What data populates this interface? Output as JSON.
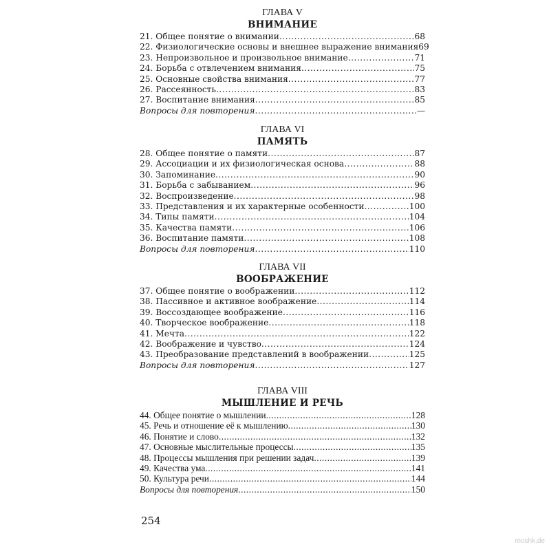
{
  "chapters": [
    {
      "label": "ГЛАВА V",
      "title": "ВНИМАНИЕ",
      "entries": [
        {
          "text": "21. Общее понятие о внимании",
          "page": "68"
        },
        {
          "text": "22. Физиологические основы и внешнее выражение внимания",
          "page": "69"
        },
        {
          "text": "23. Непроизвольное и произвольное внимание",
          "page": "71"
        },
        {
          "text": "24. Борьба с отвлечением внимания",
          "page": "75"
        },
        {
          "text": "25. Основные свойства внимания",
          "page": "77"
        },
        {
          "text": "26. Рассеянность",
          "page": "83"
        },
        {
          "text": "27. Воспитание внимания",
          "page": "85"
        },
        {
          "text": "Вопросы для повторения",
          "page": "—",
          "italic": true
        }
      ]
    },
    {
      "label": "ГЛАВА VI",
      "title": "ПАМЯТЬ",
      "entries": [
        {
          "text": "28. Общее понятие о памяти",
          "page": "87"
        },
        {
          "text": "29. Ассоциации и их физиологическая основа",
          "page": "88"
        },
        {
          "text": "30. Запоминание",
          "page": "90"
        },
        {
          "text": "31. Борьба с забыванием",
          "page": "96"
        },
        {
          "text": "32. Воспроизведение",
          "page": "98"
        },
        {
          "text": "33. Представления и их характерные особенности",
          "page": "100"
        },
        {
          "text": "34. Типы памяти",
          "page": "104"
        },
        {
          "text": "35. Качества памяти",
          "page": "106"
        },
        {
          "text": "36. Воспитание памяти",
          "page": "108"
        },
        {
          "text": "Вопросы для повторения",
          "page": "110",
          "italic": true
        }
      ]
    },
    {
      "label": "ГЛАВА VII",
      "title": "ВООБРАЖЕНИЕ",
      "entries": [
        {
          "text": "37. Общее понятие о воображении",
          "page": "112"
        },
        {
          "text": "38. Пассивное и активное воображение",
          "page": "114"
        },
        {
          "text": "39. Воссоздающее воображение",
          "page": "116"
        },
        {
          "text": "40. Творческое воображение",
          "page": "118"
        },
        {
          "text": "41. Мечта",
          "page": "122"
        },
        {
          "text": "42. Воображение и чувство",
          "page": "124"
        },
        {
          "text": "43. Преобразование представлений в воображении",
          "page": "125"
        },
        {
          "text": "Вопросы для повторения",
          "page": "127",
          "italic": true
        }
      ]
    },
    {
      "label": "ГЛАВА VIII",
      "title": "МЫШЛЕНИЕ И РЕЧЬ",
      "entries": [
        {
          "text": "44. Общее понятие о мышлении",
          "page": "128"
        },
        {
          "text": "45. Речь и отношение её к мышлению",
          "page": "130"
        },
        {
          "text": "46. Понятие и слово",
          "page": "132"
        },
        {
          "text": "47. Основные мыслительные процессы",
          "page": "135"
        },
        {
          "text": "48. Процессы мышления при решении задач",
          "page": "139"
        },
        {
          "text": "49. Качества ума",
          "page": "141"
        },
        {
          "text": "50. Культура речи",
          "page": "144"
        },
        {
          "text": "Вопросы для повторения",
          "page": "150",
          "italic": true
        }
      ]
    }
  ],
  "page_number": "254",
  "watermark": "moshk.de"
}
